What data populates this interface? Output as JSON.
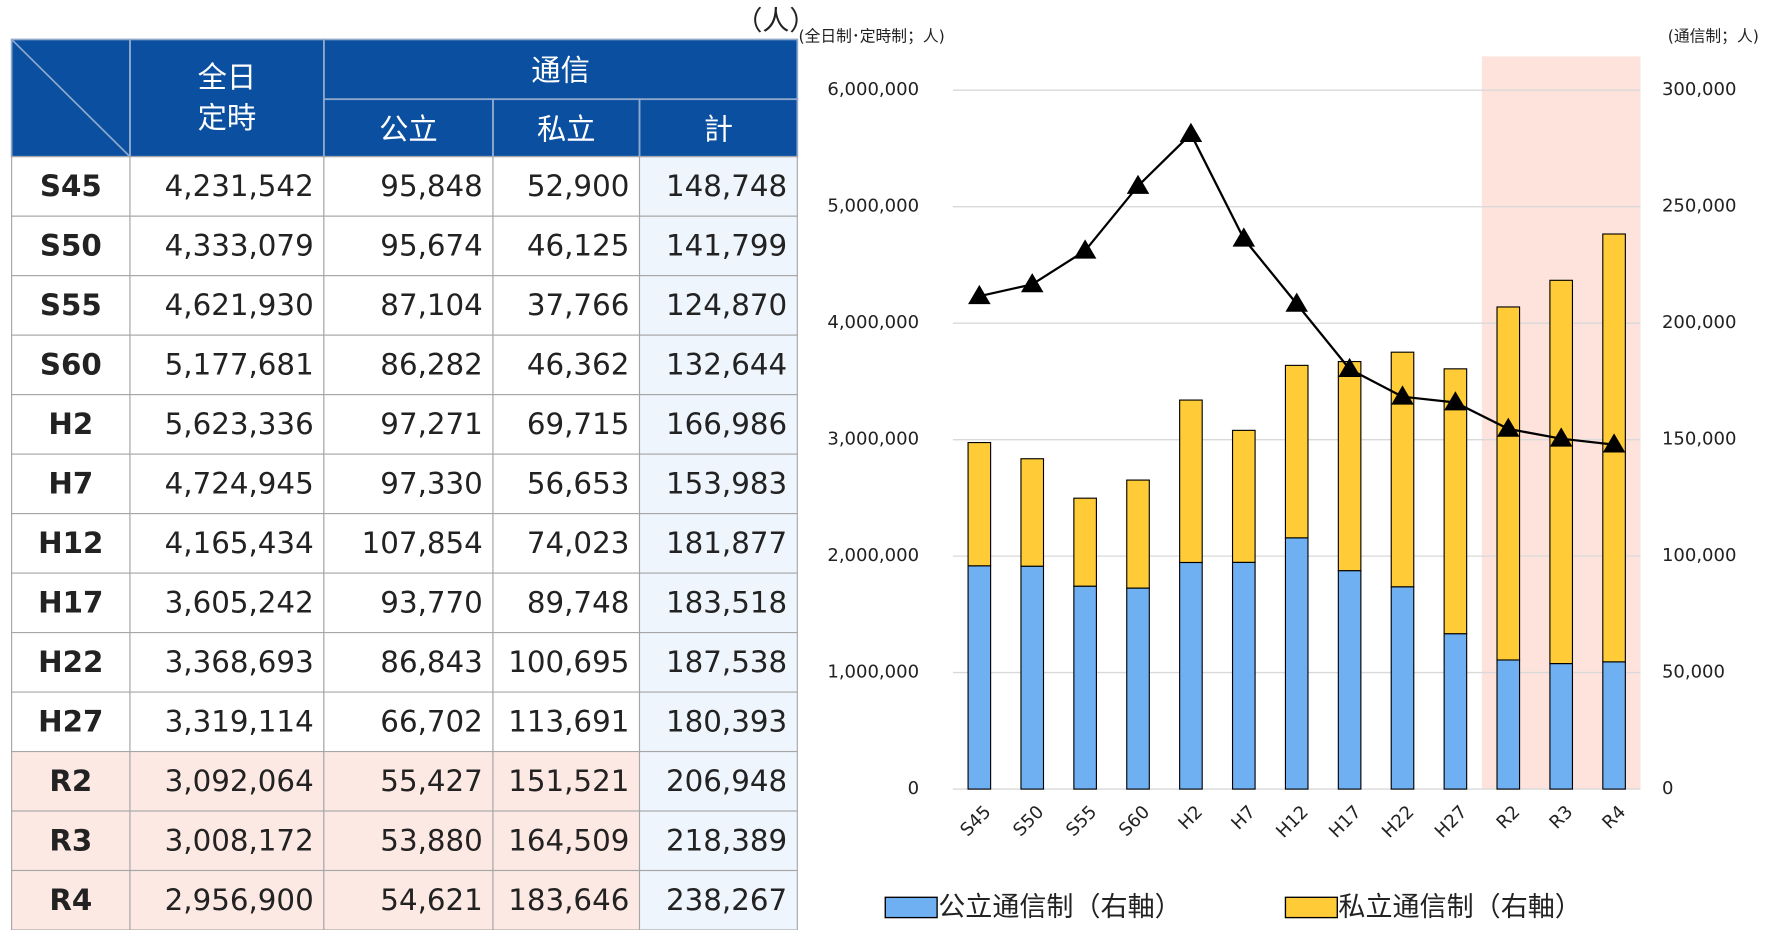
{
  "table": {
    "header": {
      "first": [
        "全日",
        "定時"
      ],
      "group": "通信",
      "sub": [
        "公立",
        "私立",
        "計"
      ]
    },
    "header_color": "#0b4fa0",
    "sum_color": "#eef5fc",
    "highlight_color": "#fde9e4",
    "rows": [
      [
        "S45",
        "4,231,542",
        "95,848",
        "52,900",
        "148,748"
      ],
      [
        "S50",
        "4,333,079",
        "95,674",
        "46,125",
        "141,799"
      ],
      [
        "S55",
        "4,621,930",
        "87,104",
        "37,766",
        "124,870"
      ],
      [
        "S60",
        "5,177,681",
        "86,282",
        "46,362",
        "132,644"
      ],
      [
        "H2",
        "5,623,336",
        "97,271",
        "69,715",
        "166,986"
      ],
      [
        "H7",
        "4,724,945",
        "97,330",
        "56,653",
        "153,983"
      ],
      [
        "H12",
        "4,165,434",
        "107,854",
        "74,023",
        "181,877"
      ],
      [
        "H17",
        "3,605,242",
        "93,770",
        "89,748",
        "183,518"
      ],
      [
        "H22",
        "3,368,693",
        "86,843",
        "100,695",
        "187,538"
      ],
      [
        "H27",
        "3,319,114",
        "66,702",
        "113,691",
        "180,393"
      ],
      [
        "R2",
        "3,092,064",
        "55,427",
        "151,521",
        "206,948"
      ],
      [
        "R3",
        "3,008,172",
        "53,880",
        "164,509",
        "218,389"
      ],
      [
        "R4",
        "2,956,900",
        "54,621",
        "183,646",
        "238,267"
      ]
    ]
  },
  "chart_data": {
    "type": "bar",
    "stacked": true,
    "unit_note": "（人）",
    "ylabel": "(全日制･定時制；人)",
    "y2label": "(通信制；人)",
    "categories": [
      "S45",
      "S50",
      "S55",
      "S60",
      "H2",
      "H7",
      "H12",
      "H17",
      "H22",
      "H27",
      "R2",
      "R3",
      "R4"
    ],
    "highlight": {
      "from": "R2",
      "to": "R4",
      "color": "#fde3dc"
    },
    "series": [
      {
        "name": "公立通信制（右軸）",
        "color": "#6fb0f2",
        "axis": "y2",
        "values": [
          95848,
          95674,
          87104,
          86282,
          97271,
          97330,
          107854,
          93770,
          86843,
          66702,
          55427,
          53880,
          54621
        ]
      },
      {
        "name": "私立通信制（右軸）",
        "color": "#ffcb37",
        "axis": "y2",
        "values": [
          52900,
          46125,
          37766,
          46362,
          69715,
          56653,
          74023,
          89748,
          100695,
          113691,
          151521,
          164509,
          183646
        ]
      },
      {
        "type": "line",
        "color": "#000000",
        "marker": "triangle",
        "values": [
          4231542,
          4333079,
          4621930,
          5177681,
          5623336,
          4724945,
          4165434,
          3605242,
          3368693,
          3319114,
          3092064,
          3008172,
          2956900
        ]
      }
    ],
    "ylim": [
      0,
      6000000
    ],
    "yticks": [
      0,
      {
        "value": 1000000,
        "label": "1,000,000"
      },
      {
        "value": 2000000,
        "label": "2,000,000"
      },
      {
        "value": 3000000,
        "label": "3,000,000"
      },
      {
        "value": 4000000,
        "label": "4,000,000"
      },
      {
        "value": 5000000,
        "label": "5,000,000"
      },
      {
        "value": 6000000,
        "label": "6,000,000"
      }
    ],
    "y2lim": [
      0,
      300000
    ],
    "y2ticks": [
      0,
      {
        "value": 50000,
        "label": "50,000"
      },
      {
        "value": 100000,
        "label": "100,000"
      },
      {
        "value": 150000,
        "label": "150,000"
      },
      {
        "value": 200000,
        "label": "200,000"
      },
      {
        "value": 250000,
        "label": "250,000"
      },
      {
        "value": 300000,
        "label": "300,000"
      }
    ],
    "grid": true
  }
}
